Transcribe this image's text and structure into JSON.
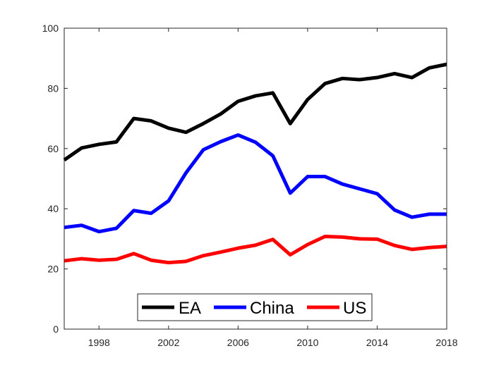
{
  "chart_data": {
    "type": "line",
    "title": "",
    "xlabel": "",
    "ylabel": "",
    "xlim": [
      1996,
      2018
    ],
    "ylim": [
      0,
      100
    ],
    "x_ticks": [
      1998,
      2002,
      2006,
      2010,
      2014,
      2018
    ],
    "x_tick_labels": [
      "1998",
      "2002",
      "2006",
      "2010",
      "2014",
      "2018"
    ],
    "y_ticks": [
      0,
      20,
      40,
      60,
      80,
      100
    ],
    "y_tick_labels": [
      "0",
      "20",
      "40",
      "60",
      "80",
      "100"
    ],
    "grid": false,
    "legend_position": "bottom-center",
    "x": [
      1996,
      1997,
      1998,
      1999,
      2000,
      2001,
      2002,
      2003,
      2004,
      2005,
      2006,
      2007,
      2008,
      2009,
      2010,
      2011,
      2012,
      2013,
      2014,
      2015,
      2016,
      2017,
      2018
    ],
    "series": [
      {
        "name": "EA",
        "color": "#000000",
        "values": [
          56.2,
          60.2,
          61.4,
          62.2,
          70.0,
          69.2,
          66.8,
          65.4,
          68.3,
          71.5,
          75.7,
          77.5,
          78.5,
          68.3,
          76.3,
          81.6,
          83.3,
          82.9,
          83.6,
          84.9,
          83.6,
          86.8,
          88.0
        ]
      },
      {
        "name": "China",
        "color": "#0000ff",
        "values": [
          33.8,
          34.5,
          32.4,
          33.5,
          39.4,
          38.5,
          42.6,
          51.9,
          59.6,
          62.3,
          64.5,
          62.1,
          57.6,
          45.2,
          50.7,
          50.7,
          48.2,
          46.6,
          45.0,
          39.6,
          37.2,
          38.2,
          38.2
        ]
      },
      {
        "name": "US",
        "color": "#ff0000",
        "values": [
          22.7,
          23.4,
          22.9,
          23.2,
          25.1,
          22.9,
          22.1,
          22.5,
          24.4,
          25.6,
          26.9,
          27.9,
          29.8,
          24.7,
          28.1,
          30.8,
          30.6,
          30.0,
          29.9,
          27.8,
          26.5,
          27.1,
          27.5
        ]
      }
    ]
  }
}
